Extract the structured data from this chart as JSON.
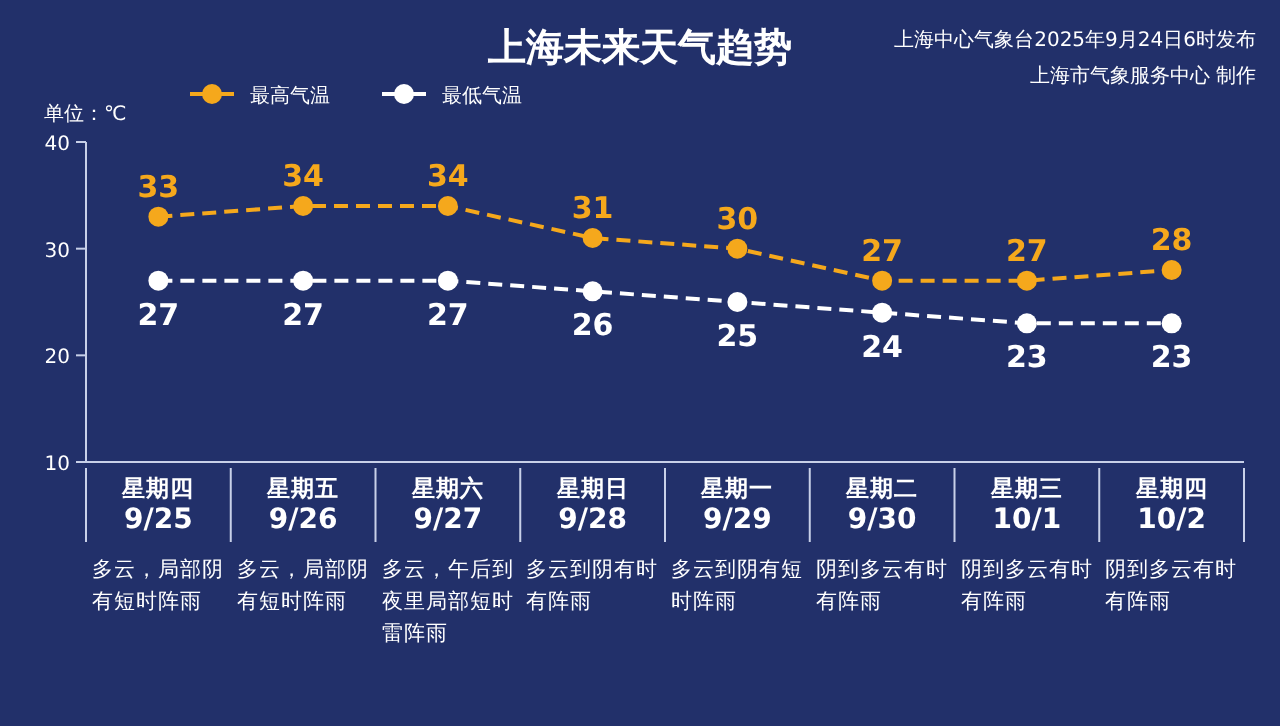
{
  "chart_data": {
    "type": "line",
    "title": "上海未来天气趋势",
    "ylabel": "单位：℃",
    "categories": [
      "星期四\n9/25",
      "星期五\n9/26",
      "星期六\n9/27",
      "星期日\n9/28",
      "星期一\n9/29",
      "星期二\n9/30",
      "星期三\n10/1",
      "星期四\n10/2"
    ],
    "series": [
      {
        "name": "最高气温",
        "color": "#f5a81c",
        "values": [
          33,
          34,
          34,
          31,
          30,
          27,
          27,
          28
        ]
      },
      {
        "name": "最低气温",
        "color": "#ffffff",
        "values": [
          27,
          27,
          27,
          26,
          25,
          24,
          23,
          23
        ]
      }
    ],
    "ylim": [
      10,
      40
    ],
    "yticks": [
      10,
      20,
      30,
      40
    ],
    "grid": false,
    "legend": "top left",
    "marker": "circle",
    "line_style": "dashed",
    "data_labels": true,
    "annotations": [
      "上海中心气象台2025年9月24日6时发布",
      "上海市气象服务中心 制作",
      "多云，局部阴有短时阵雨",
      "多云，局部阴有短时阵雨",
      "多云，午后到夜里局部短时雷阵雨",
      "多云到阴有时有阵雨",
      "多云到阴有短时阵雨",
      "阴到多云有时有阵雨",
      "阴到多云有时有阵雨",
      "阴到多云有时有阵雨"
    ]
  }
}
